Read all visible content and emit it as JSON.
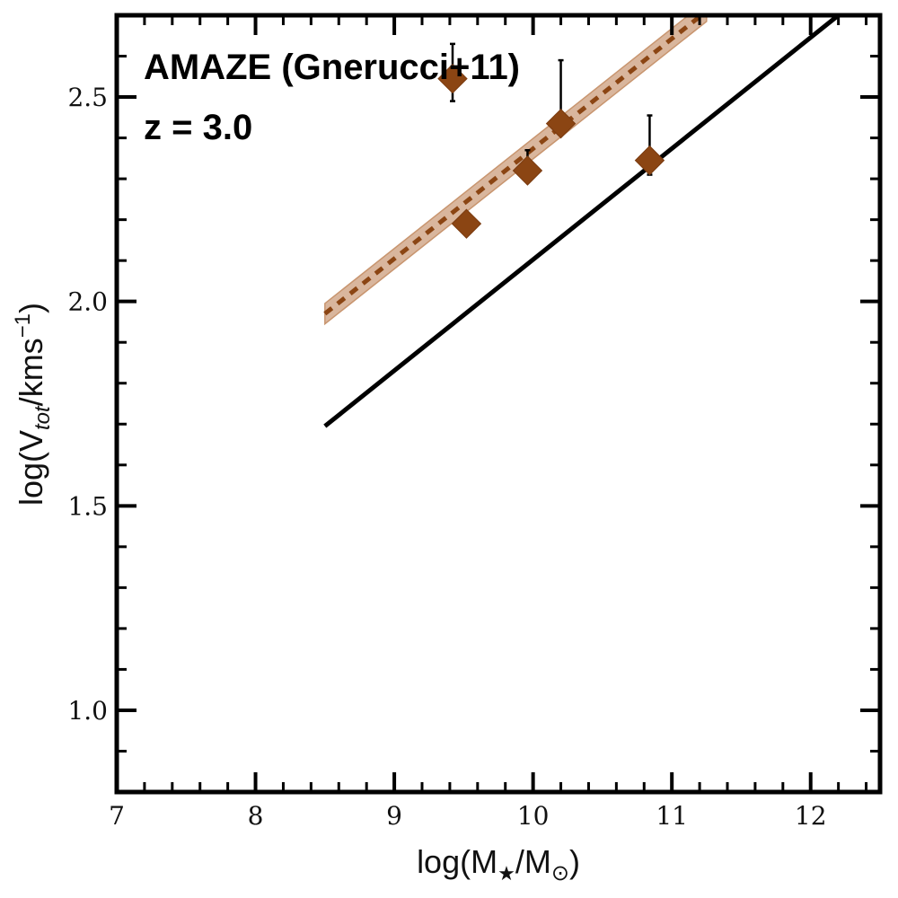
{
  "chart_data": {
    "type": "scatter",
    "title": "",
    "xlabel_parts": [
      "log(M",
      "★",
      "/M",
      "⊙",
      ")"
    ],
    "ylabel_parts": [
      "log(V",
      "tot",
      "/kms",
      "−1",
      ")"
    ],
    "xlim": [
      7,
      12.5
    ],
    "ylim": [
      0.8,
      2.7
    ],
    "xticks": [
      7,
      8,
      9,
      10,
      11,
      12
    ],
    "xtick_labels": [
      "7",
      "8",
      "9",
      "10",
      "11",
      "12"
    ],
    "yticks": [
      1.0,
      1.5,
      2.0,
      2.5
    ],
    "ytick_labels": [
      "1.0",
      "1.5",
      "2.0",
      "2.5"
    ],
    "grid": false,
    "annotations": [
      "AMAZE (Gnerucci+11)",
      "z = 3.0"
    ],
    "series": [
      {
        "name": "AMAZE (Gnerucci+11)",
        "kind": "points",
        "marker": "diamond",
        "color": "#8B4513",
        "points": [
          {
            "x": 9.42,
            "y": 2.545,
            "err_low": 0.055,
            "err_high": 0.085
          },
          {
            "x": 9.52,
            "y": 2.19,
            "err_low": 0.0,
            "err_high": 0.0
          },
          {
            "x": 9.96,
            "y": 2.32,
            "err_low": 0.0,
            "err_high": 0.05
          },
          {
            "x": 10.2,
            "y": 2.435,
            "err_low": 0.0,
            "err_high": 0.155
          },
          {
            "x": 10.84,
            "y": 2.345,
            "err_low": 0.035,
            "err_high": 0.11
          }
        ]
      },
      {
        "name": "fit",
        "kind": "dashed-line-with-band",
        "color": "#8B4513",
        "band_color": "#D2A98C",
        "x": [
          8.5,
          11.25
        ],
        "y": [
          1.97,
          2.71
        ],
        "band_halfwidth": 0.025
      },
      {
        "name": "reference",
        "kind": "solid-line",
        "color": "#000000",
        "x": [
          8.5,
          12.2
        ],
        "y": [
          1.695,
          2.7
        ]
      }
    ]
  }
}
